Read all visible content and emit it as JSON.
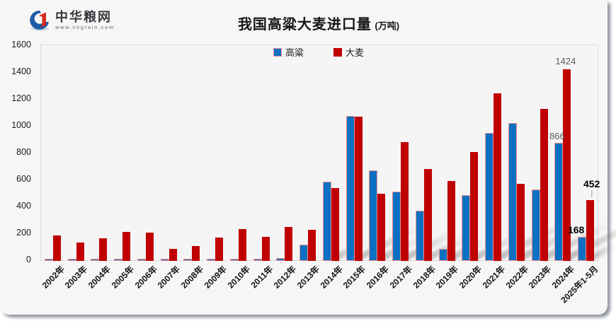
{
  "logo": {
    "name": "中华粮网",
    "url": "www.cngrain.com"
  },
  "title": {
    "main": "我国高粱大麦进口量",
    "unit": "(万吨)"
  },
  "colors": {
    "sorghum": "#0c70c2",
    "sorghum_border": "#ef8e8c",
    "barley": "#c00000",
    "label_gray": "#595959",
    "label_black": "#000000",
    "plot_bg": "#f5f5f5",
    "card_bg": "#f6f6f6"
  },
  "chart_data": {
    "type": "bar",
    "title": "我国高粱大麦进口量 (万吨)",
    "xlabel": "",
    "ylabel": "",
    "ylim": [
      0,
      1600
    ],
    "ytick_step": 200,
    "yticks": [
      "0",
      "200",
      "400",
      "600",
      "800",
      "1000",
      "1200",
      "1400",
      "1600"
    ],
    "grid": false,
    "legend_position": "top-center",
    "categories": [
      "2002年",
      "2003年",
      "2004年",
      "2005年",
      "2006年",
      "2007年",
      "2008年",
      "2009年",
      "2010年",
      "2011年",
      "2012年",
      "2013年",
      "2014年",
      "2015年",
      "2016年",
      "2017年",
      "2018年",
      "2019年",
      "2020年",
      "2021年",
      "2022年",
      "2023年",
      "2024年",
      "2025年1-5月"
    ],
    "series": [
      {
        "name": "高粱",
        "values": [
          2,
          2,
          2,
          2,
          2,
          2,
          2,
          2,
          2,
          2,
          9,
          108,
          578,
          1070,
          665,
          506,
          365,
          80,
          481,
          942,
          1014,
          520,
          866,
          168
        ]
      },
      {
        "name": "大麦",
        "values": [
          190,
          136,
          171,
          218,
          213,
          91,
          108,
          176,
          237,
          178,
          253,
          234,
          541,
          1073,
          500,
          886,
          682,
          593,
          808,
          1248,
          576,
          1132,
          1424,
          452
        ]
      }
    ],
    "point_labels": [
      {
        "series": 1,
        "index": 22,
        "text": "1424",
        "style": "gray",
        "dx": -2,
        "leader": false
      },
      {
        "series": 0,
        "index": 22,
        "text": "866",
        "style": "gray",
        "dx": -2,
        "leader": false
      },
      {
        "series": 1,
        "index": 23,
        "text": "452",
        "style": "black",
        "dx": 2,
        "leader": true
      },
      {
        "series": 0,
        "index": 23,
        "text": "168",
        "style": "black",
        "dx": -8,
        "leader": false
      }
    ]
  }
}
